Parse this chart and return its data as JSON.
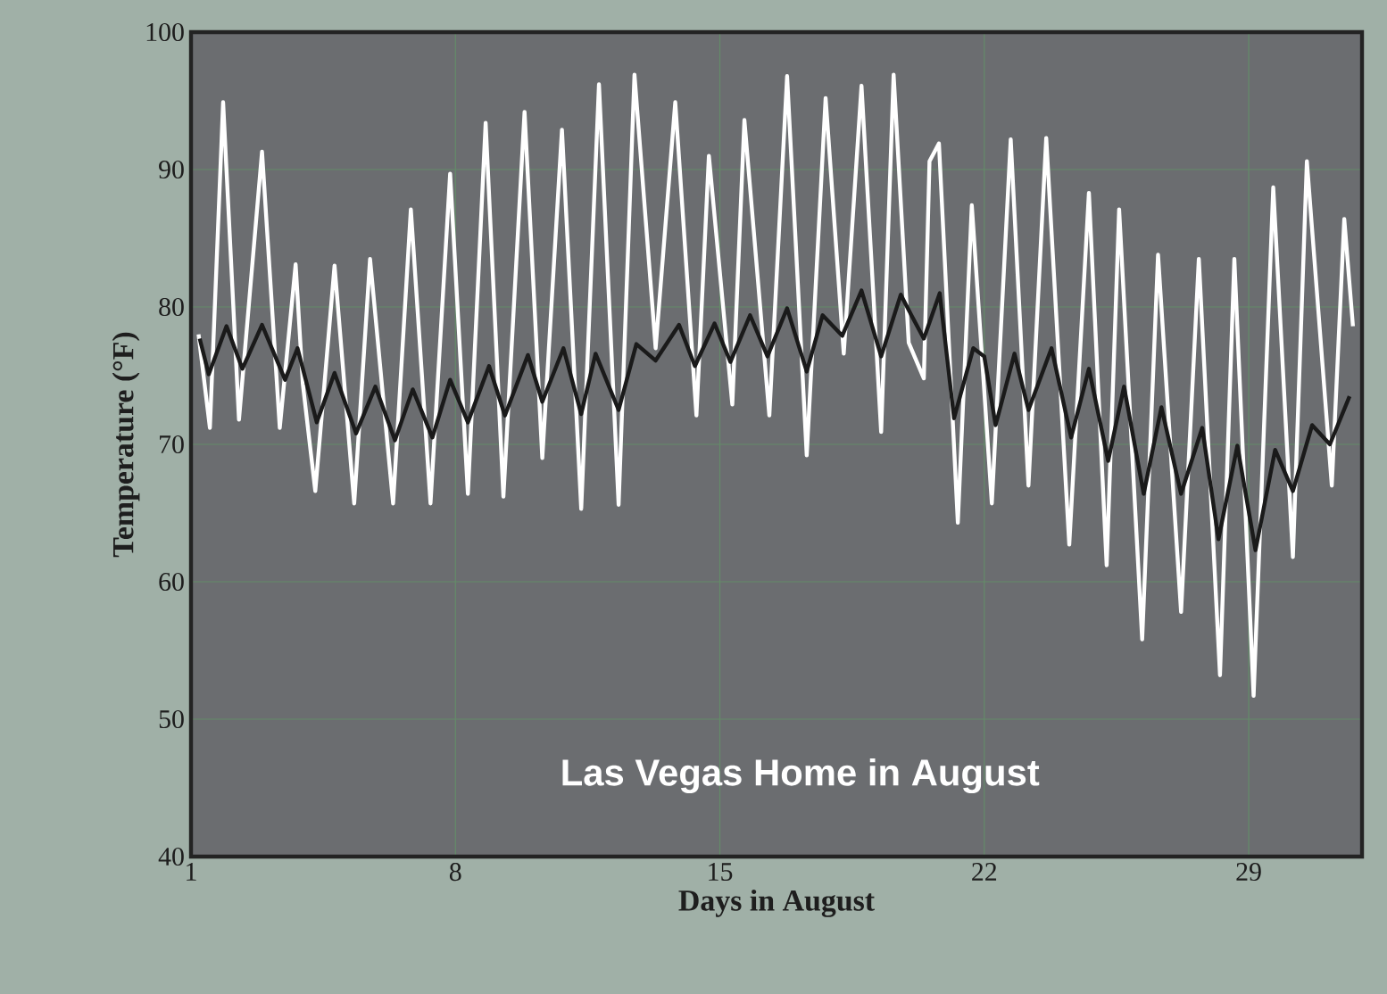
{
  "chart_data": {
    "type": "line",
    "title": "Las Vegas Home in August",
    "xlabel": "Days in August",
    "ylabel": "Temperature (°F)",
    "xlim": [
      1,
      32
    ],
    "ylim": [
      40,
      100
    ],
    "xticks": [
      1,
      8,
      15,
      22,
      29
    ],
    "yticks": [
      40,
      50,
      60,
      70,
      80,
      90,
      100
    ],
    "grid": true,
    "marker": "none",
    "line_style": "solid",
    "series": [
      {
        "color": "#ffffff",
        "x": [
          1.2,
          1.5,
          1.85,
          2.27,
          2.88,
          3.35,
          3.77,
          3.96,
          4.29,
          4.8,
          5.32,
          5.74,
          6.35,
          6.82,
          7.34,
          7.86,
          8.33,
          8.8,
          9.27,
          9.83,
          10.3,
          10.82,
          11.33,
          11.8,
          12.32,
          12.74,
          13.3,
          13.82,
          14.38,
          14.71,
          15.33,
          15.65,
          16.31,
          16.78,
          17.3,
          17.8,
          18.28,
          18.75,
          19.27,
          19.6,
          20.0,
          20.4,
          20.55,
          20.8,
          21.3,
          21.67,
          22.2,
          22.7,
          23.17,
          23.64,
          24.25,
          24.77,
          25.24,
          25.57,
          26.18,
          26.6,
          27.21,
          27.68,
          28.24,
          28.62,
          29.13,
          29.65,
          30.17,
          30.54,
          31.2,
          31.53,
          31.76
        ],
        "values": [
          78,
          71.2,
          94.9,
          71.8,
          91.3,
          71.2,
          83.1,
          74.4,
          66.6,
          83,
          65.7,
          83.5,
          65.7,
          87.1,
          65.7,
          89.7,
          66.4,
          93.4,
          66.2,
          94.2,
          69,
          92.9,
          65.3,
          96.2,
          65.6,
          96.9,
          77,
          94.9,
          72.1,
          91,
          72.9,
          93.6,
          72.1,
          96.8,
          69.2,
          95.2,
          76.6,
          96.1,
          70.9,
          96.9,
          77.4,
          74.8,
          90.6,
          91.9,
          64.3,
          87.4,
          65.7,
          92.2,
          67,
          92.3,
          62.7,
          88.3,
          61.2,
          87.1,
          55.8,
          83.8,
          57.8,
          83.5,
          53.2,
          83.5,
          51.7,
          88.7,
          61.8,
          90.6,
          67,
          86.4,
          78.6
        ]
      },
      {
        "color": "#1a1a1a",
        "x": [
          1.23,
          1.47,
          1.94,
          2.36,
          2.88,
          3.49,
          3.82,
          4.33,
          4.8,
          5.37,
          5.88,
          6.4,
          6.87,
          7.39,
          7.86,
          8.33,
          8.89,
          9.31,
          9.92,
          10.3,
          10.86,
          11.33,
          11.71,
          12.32,
          12.79,
          13.3,
          13.92,
          14.34,
          14.86,
          15.28,
          15.8,
          16.26,
          16.78,
          17.3,
          17.72,
          18.24,
          18.75,
          19.27,
          19.79,
          20.07,
          20.4,
          20.82,
          21.2,
          21.71,
          22.0,
          22.3,
          22.8,
          23.17,
          23.78,
          24.3,
          24.77,
          25.28,
          25.7,
          26.22,
          26.69,
          27.21,
          27.77,
          28.2,
          28.7,
          29.18,
          29.7,
          30.17,
          30.68,
          31.15,
          31.67
        ],
        "values": [
          77.7,
          75.1,
          78.6,
          75.5,
          78.7,
          74.7,
          77,
          71.6,
          75.2,
          70.8,
          74.2,
          70.3,
          74,
          70.5,
          74.7,
          71.6,
          75.7,
          72.1,
          76.5,
          73.1,
          77,
          72.2,
          76.6,
          72.5,
          77.3,
          76.1,
          78.7,
          75.7,
          78.8,
          76,
          79.4,
          76.4,
          79.9,
          75.3,
          79.4,
          77.9,
          81.2,
          76.4,
          80.9,
          79.4,
          77.7,
          81,
          71.9,
          77,
          76.4,
          71.4,
          76.6,
          72.5,
          77,
          70.5,
          75.5,
          68.8,
          74.2,
          66.4,
          72.7,
          66.4,
          71.2,
          63.1,
          69.9,
          62.3,
          69.6,
          66.6,
          71.4,
          70,
          73.5
        ]
      }
    ]
  }
}
